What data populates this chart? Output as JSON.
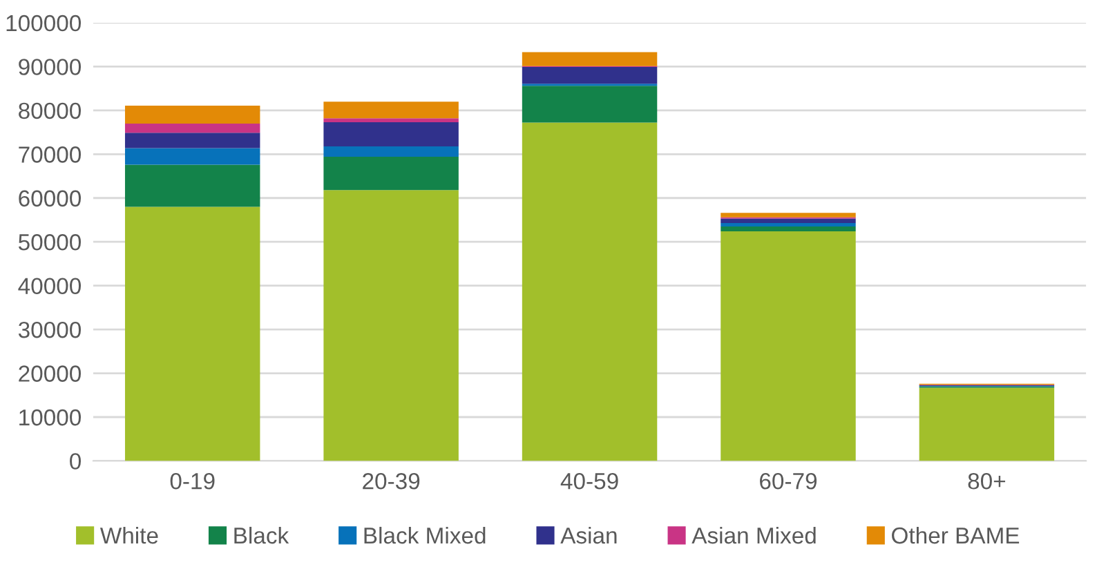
{
  "chart_data": {
    "type": "bar",
    "stacked": true,
    "categories": [
      "0-19",
      "20-39",
      "40-59",
      "60-79",
      "80+"
    ],
    "series": [
      {
        "name": "White",
        "color": "#a2bf2b",
        "values": [
          58000,
          61800,
          77200,
          52400,
          16700
        ]
      },
      {
        "name": "Black",
        "color": "#13834a",
        "values": [
          9600,
          7600,
          8400,
          1100,
          300
        ]
      },
      {
        "name": "Black Mixed",
        "color": "#0772ba",
        "values": [
          3800,
          2400,
          500,
          800,
          100
        ]
      },
      {
        "name": "Asian",
        "color": "#30318c",
        "values": [
          3500,
          5500,
          3800,
          1000,
          200
        ]
      },
      {
        "name": "Asian Mixed",
        "color": "#c93485",
        "values": [
          2100,
          900,
          200,
          300,
          50
        ]
      },
      {
        "name": "Other BAME",
        "color": "#e38a06",
        "values": [
          4100,
          3800,
          3200,
          1000,
          250
        ]
      }
    ],
    "ylim": [
      0,
      100000
    ],
    "yticks": [
      0,
      10000,
      20000,
      30000,
      40000,
      50000,
      60000,
      70000,
      80000,
      90000,
      100000
    ],
    "grid": "y",
    "legend": "bottom"
  }
}
